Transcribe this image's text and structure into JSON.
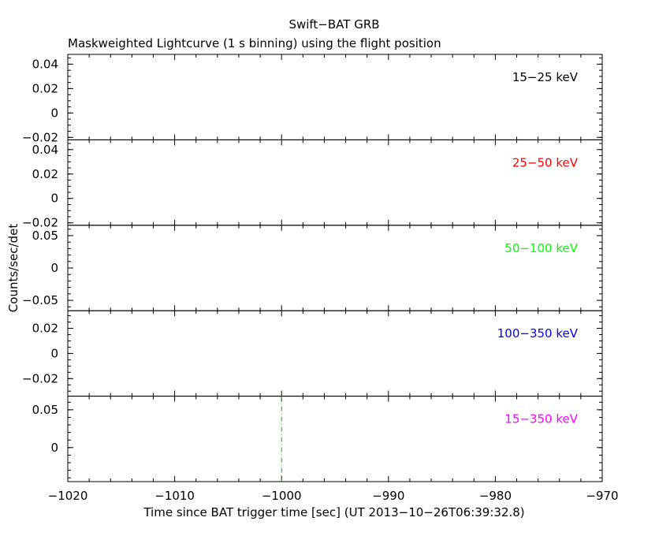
{
  "chart_data": {
    "type": "line",
    "title": "Swift−BAT GRB",
    "subtitle": "Maskweighted Lightcurve (1 s binning) using the flight position",
    "xlabel": "Time since BAT trigger time [sec] (UT 2013−10−26T06:39:32.8)",
    "ylabel": "Counts/sec/det",
    "xlim": [
      -1020,
      -970
    ],
    "x_ticks": [
      -1020,
      -1010,
      -1000,
      -990,
      -980,
      -970
    ],
    "x_tick_labels": [
      "−1020",
      "−1010",
      "−1000",
      "−990",
      "−980",
      "−970"
    ],
    "grid": false,
    "marker_line": {
      "x": -1000,
      "color": "#00bb00",
      "panel": 4
    },
    "panels": [
      {
        "band": "15−25 keV",
        "color": "#000000",
        "ylim": [
          -0.022,
          0.048
        ],
        "y_ticks": [
          -0.02,
          0,
          0.02,
          0.04
        ],
        "y_tick_labels": [
          "−0.02",
          "0",
          "0.02",
          "0.04"
        ],
        "minor_step": 0.005,
        "x": [],
        "values": []
      },
      {
        "band": "25−50 keV",
        "color": "#ff0000",
        "ylim": [
          -0.022,
          0.048
        ],
        "y_ticks": [
          -0.02,
          0,
          0.02,
          0.04
        ],
        "y_tick_labels": [
          "−0.02",
          "0",
          "0.02",
          "0.04"
        ],
        "minor_step": 0.005,
        "x": [],
        "values": []
      },
      {
        "band": "50−100 keV",
        "color": "#00ff00",
        "ylim": [
          -0.066,
          0.066
        ],
        "y_ticks": [
          -0.05,
          0,
          0.05
        ],
        "y_tick_labels": [
          "−0.05",
          "0",
          "0.05"
        ],
        "minor_step": 0.01,
        "x": [],
        "values": []
      },
      {
        "band": "100−350 keV",
        "color": "#0000ff",
        "ylim": [
          -0.034,
          0.034
        ],
        "y_ticks": [
          -0.02,
          0,
          0.02
        ],
        "y_tick_labels": [
          "−0.02",
          "0",
          "0.02"
        ],
        "minor_step": 0.005,
        "x": [],
        "values": []
      },
      {
        "band": "15−350 keV",
        "color": "#ff00ff",
        "ylim": [
          -0.045,
          0.068
        ],
        "y_ticks": [
          0,
          0.05
        ],
        "y_tick_labels": [
          "0",
          "0.05"
        ],
        "minor_step": 0.01,
        "x": [],
        "values": []
      }
    ]
  }
}
